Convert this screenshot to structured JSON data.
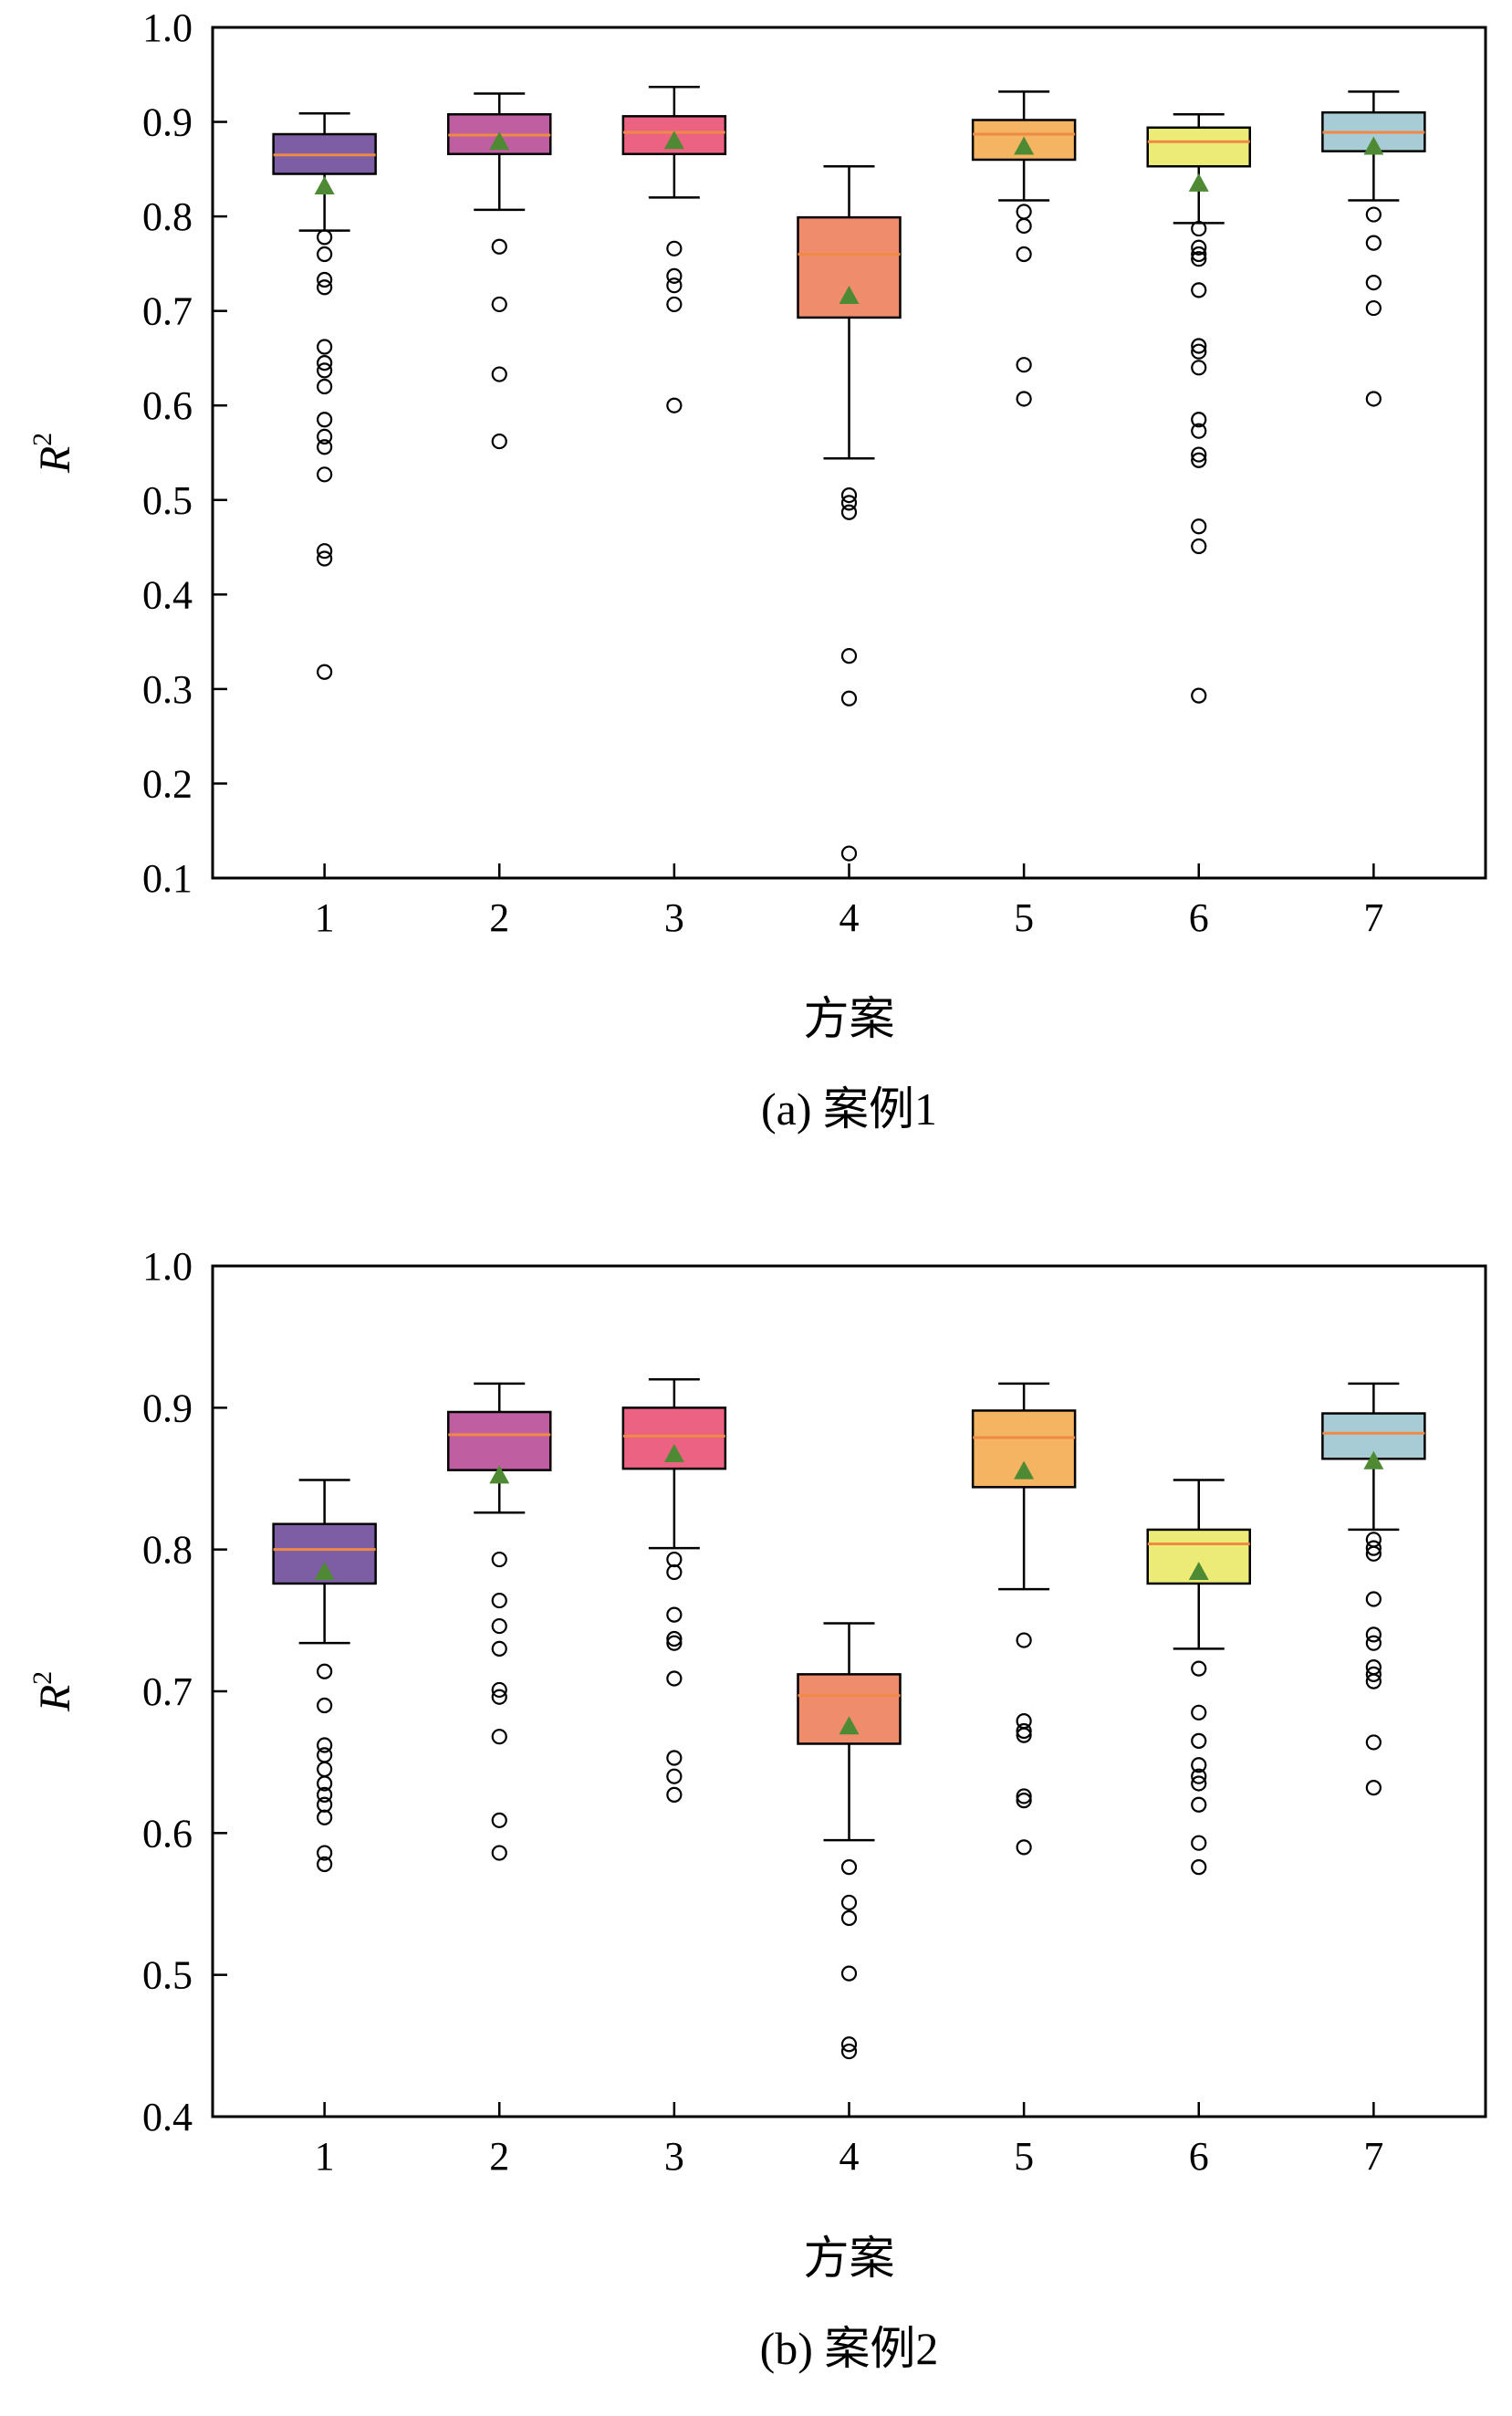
{
  "chart_data": [
    {
      "type": "box",
      "caption": "(a) 案例1",
      "xlabel": "方案",
      "ylabel": "R",
      "ylabel_superscript": "2",
      "ylim": [
        0.1,
        1.0
      ],
      "yticks": [
        "0.1",
        "0.2",
        "0.3",
        "0.4",
        "0.5",
        "0.6",
        "0.7",
        "0.8",
        "0.9",
        "1.0"
      ],
      "categories": [
        "1",
        "2",
        "3",
        "4",
        "5",
        "6",
        "7"
      ],
      "colors": [
        "#7d5da3",
        "#bf5ea1",
        "#ec6283",
        "#ef8c6c",
        "#f5b462",
        "#eceb76",
        "#a8ccd5"
      ],
      "median_color": "#ee8a45",
      "mean_marker_color": "#4e8a33",
      "grid": false,
      "boxes": [
        {
          "whislo": 0.785,
          "q1": 0.845,
          "med": 0.865,
          "q3": 0.887,
          "whishi": 0.909,
          "mean": 0.833,
          "fliers": [
            0.778,
            0.76,
            0.733,
            0.725,
            0.662,
            0.645,
            0.637,
            0.62,
            0.585,
            0.567,
            0.556,
            0.527,
            0.446,
            0.438,
            0.318
          ]
        },
        {
          "whislo": 0.807,
          "q1": 0.866,
          "med": 0.886,
          "q3": 0.908,
          "whishi": 0.93,
          "mean": 0.88,
          "fliers": [
            0.768,
            0.707,
            0.633,
            0.562
          ]
        },
        {
          "whislo": 0.82,
          "q1": 0.866,
          "med": 0.889,
          "q3": 0.906,
          "whishi": 0.937,
          "mean": 0.881,
          "fliers": [
            0.766,
            0.737,
            0.727,
            0.707,
            0.6
          ]
        },
        {
          "whislo": 0.544,
          "q1": 0.693,
          "med": 0.76,
          "q3": 0.799,
          "whishi": 0.853,
          "mean": 0.717,
          "fliers": [
            0.505,
            0.497,
            0.487,
            0.335,
            0.29,
            0.126
          ]
        },
        {
          "whislo": 0.817,
          "q1": 0.86,
          "med": 0.887,
          "q3": 0.902,
          "whishi": 0.932,
          "mean": 0.875,
          "fliers": [
            0.805,
            0.79,
            0.76,
            0.643,
            0.607
          ]
        },
        {
          "whislo": 0.793,
          "q1": 0.853,
          "med": 0.879,
          "q3": 0.894,
          "whishi": 0.908,
          "mean": 0.836,
          "fliers": [
            0.787,
            0.767,
            0.76,
            0.755,
            0.722,
            0.663,
            0.657,
            0.64,
            0.585,
            0.573,
            0.548,
            0.542,
            0.472,
            0.451,
            0.293
          ]
        },
        {
          "whislo": 0.817,
          "q1": 0.869,
          "med": 0.889,
          "q3": 0.91,
          "whishi": 0.932,
          "mean": 0.875,
          "fliers": [
            0.802,
            0.772,
            0.73,
            0.703,
            0.607
          ]
        }
      ]
    },
    {
      "type": "box",
      "caption": "(b) 案例2",
      "xlabel": "方案",
      "ylabel": "R",
      "ylabel_superscript": "2",
      "ylim": [
        0.4,
        1.0
      ],
      "yticks": [
        "0.4",
        "0.5",
        "0.6",
        "0.7",
        "0.8",
        "0.9",
        "1.0"
      ],
      "categories": [
        "1",
        "2",
        "3",
        "4",
        "5",
        "6",
        "7"
      ],
      "colors": [
        "#7d5da3",
        "#bf5ea1",
        "#ec6283",
        "#ef8c6c",
        "#f5b462",
        "#eceb76",
        "#a8ccd5"
      ],
      "median_color": "#ee8a45",
      "mean_marker_color": "#4e8a33",
      "grid": false,
      "boxes": [
        {
          "whislo": 0.734,
          "q1": 0.776,
          "med": 0.8,
          "q3": 0.818,
          "whishi": 0.849,
          "mean": 0.785,
          "fliers": [
            0.714,
            0.69,
            0.662,
            0.655,
            0.645,
            0.635,
            0.627,
            0.62,
            0.611,
            0.586,
            0.578
          ]
        },
        {
          "whislo": 0.826,
          "q1": 0.856,
          "med": 0.881,
          "q3": 0.897,
          "whishi": 0.917,
          "mean": 0.853,
          "fliers": [
            0.793,
            0.764,
            0.746,
            0.73,
            0.701,
            0.696,
            0.668,
            0.609,
            0.586
          ]
        },
        {
          "whislo": 0.801,
          "q1": 0.857,
          "med": 0.88,
          "q3": 0.9,
          "whishi": 0.92,
          "mean": 0.868,
          "fliers": [
            0.793,
            0.784,
            0.754,
            0.737,
            0.734,
            0.709,
            0.653,
            0.64,
            0.627
          ]
        },
        {
          "whislo": 0.595,
          "q1": 0.663,
          "med": 0.697,
          "q3": 0.712,
          "whishi": 0.748,
          "mean": 0.676,
          "fliers": [
            0.576,
            0.551,
            0.54,
            0.501,
            0.451,
            0.446
          ]
        },
        {
          "whislo": 0.772,
          "q1": 0.844,
          "med": 0.879,
          "q3": 0.898,
          "whishi": 0.917,
          "mean": 0.856,
          "fliers": [
            0.736,
            0.679,
            0.672,
            0.669,
            0.626,
            0.623,
            0.59
          ]
        },
        {
          "whislo": 0.73,
          "q1": 0.776,
          "med": 0.804,
          "q3": 0.814,
          "whishi": 0.849,
          "mean": 0.785,
          "fliers": [
            0.716,
            0.685,
            0.665,
            0.648,
            0.64,
            0.635,
            0.62,
            0.593,
            0.576
          ]
        },
        {
          "whislo": 0.814,
          "q1": 0.864,
          "med": 0.882,
          "q3": 0.896,
          "whishi": 0.917,
          "mean": 0.863,
          "fliers": [
            0.807,
            0.801,
            0.797,
            0.765,
            0.74,
            0.734,
            0.717,
            0.712,
            0.707,
            0.664,
            0.632
          ]
        }
      ]
    }
  ]
}
